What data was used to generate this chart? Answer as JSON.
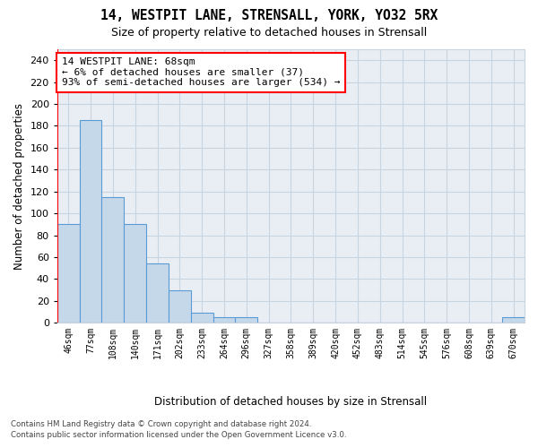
{
  "title_line1": "14, WESTPIT LANE, STRENSALL, YORK, YO32 5RX",
  "title_line2": "Size of property relative to detached houses in Strensall",
  "xlabel": "Distribution of detached houses by size in Strensall",
  "ylabel": "Number of detached properties",
  "bar_labels": [
    "46sqm",
    "77sqm",
    "108sqm",
    "140sqm",
    "171sqm",
    "202sqm",
    "233sqm",
    "264sqm",
    "296sqm",
    "327sqm",
    "358sqm",
    "389sqm",
    "420sqm",
    "452sqm",
    "483sqm",
    "514sqm",
    "545sqm",
    "576sqm",
    "608sqm",
    "639sqm",
    "670sqm"
  ],
  "bar_heights": [
    90,
    185,
    115,
    90,
    54,
    30,
    9,
    5,
    5,
    0,
    0,
    0,
    0,
    0,
    0,
    0,
    0,
    0,
    0,
    0,
    5
  ],
  "bar_color": "#c5d8ea",
  "bar_edge_color": "#5b9bd5",
  "ylim": [
    0,
    250
  ],
  "yticks": [
    0,
    20,
    40,
    60,
    80,
    100,
    120,
    140,
    160,
    180,
    200,
    220,
    240
  ],
  "annotation_line1": "14 WESTPIT LANE: 68sqm",
  "annotation_line2": "← 6% of detached houses are smaller (37)",
  "annotation_line3": "93% of semi-detached houses are larger (534) →",
  "grid_color": "#c8d4e0",
  "footer_line1": "Contains HM Land Registry data © Crown copyright and database right 2024.",
  "footer_line2": "Contains public sector information licensed under the Open Government Licence v3.0.",
  "plot_bg_color": "#e8eef4"
}
